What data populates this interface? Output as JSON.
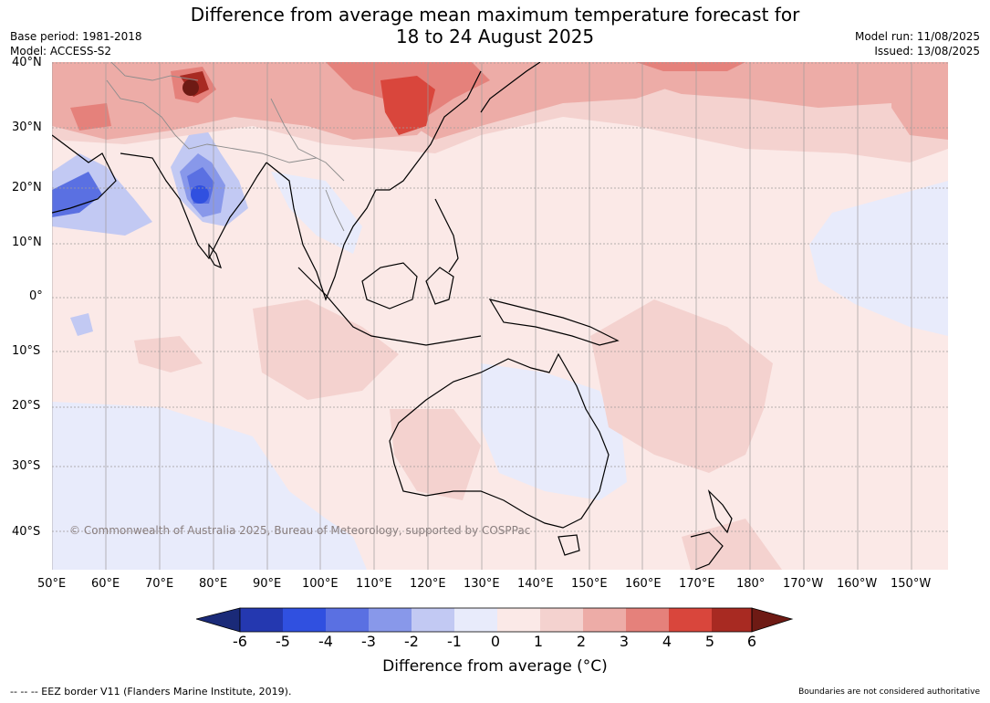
{
  "title_line1": "Difference from average mean maximum temperature forecast for",
  "title_line2": "18 to 24 August 2025",
  "meta_left": {
    "base_period": "Base period: 1981-2018",
    "model": "Model: ACCESS-S2"
  },
  "meta_right": {
    "model_run": "Model run: 11/08/2025",
    "issued": "Issued: 13/08/2025"
  },
  "map": {
    "lat_labels": [
      "40°N",
      "30°N",
      "20°N",
      "10°N",
      "0°",
      "10°S",
      "20°S",
      "30°S",
      "40°S"
    ],
    "lon_labels": [
      "50°E",
      "60°E",
      "70°E",
      "80°E",
      "90°E",
      "100°E",
      "110°E",
      "120°E",
      "130°E",
      "140°E",
      "150°E",
      "160°E",
      "170°E",
      "180°",
      "170°W",
      "160°W",
      "150°W"
    ],
    "copyright": "© Commonwealth of Australia 2025, Bureau of Meteorology, supported by COSPPac",
    "anomaly_colors": {
      "lt_-6": "#1a2a78",
      "-6_-5": "#2438b0",
      "-5_-4": "#3050e0",
      "-4_-3": "#5a70e2",
      "-3_-2": "#8898ea",
      "-2_-1": "#c2c9f3",
      "-1_0": "#e8ebfb",
      "0_1": "#fbe9e7",
      "1_2": "#f4d2cf",
      "2_3": "#edaca7",
      "3_4": "#e5817b",
      "4_5": "#d9463c",
      "5_6": "#a82a22",
      "gt_6": "#6e1a14"
    }
  },
  "colorbar": {
    "ticks": [
      "-6",
      "-5",
      "-4",
      "-3",
      "-2",
      "-1",
      "0",
      "1",
      "2",
      "3",
      "4",
      "5",
      "6"
    ],
    "label": "Difference from average (°C)"
  },
  "footer_left": "--  --  -- EEZ border V11 (Flanders Marine Institute, 2019).",
  "footer_right": "Boundaries are not considered authoritative"
}
